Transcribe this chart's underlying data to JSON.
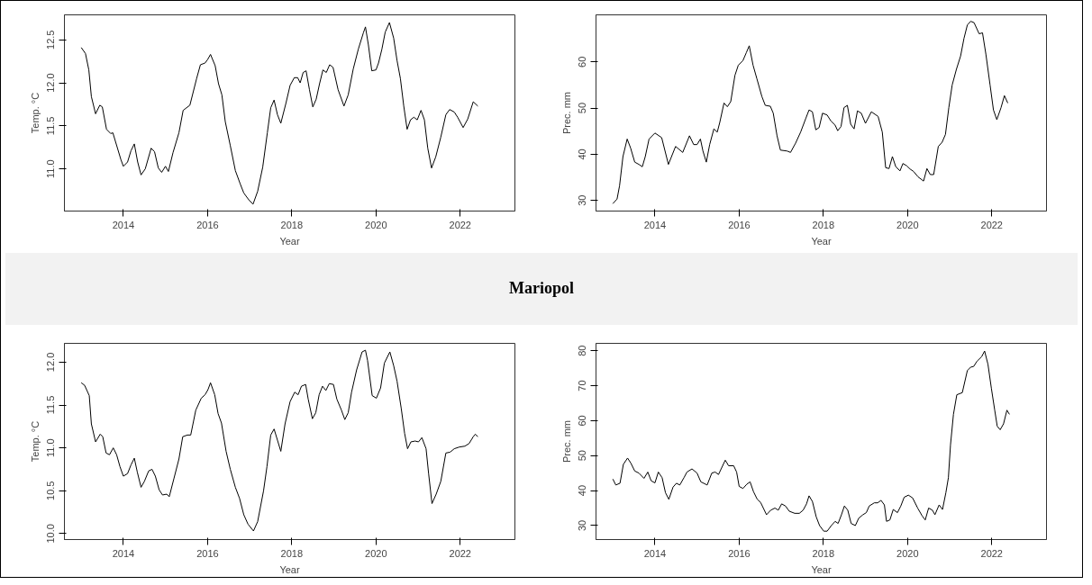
{
  "chart_data": [
    {
      "type": "line",
      "xlabel": "Year",
      "ylabel": "Temp. °C",
      "color": "#000000",
      "xlim": [
        2012.6,
        2023.3
      ],
      "ylim": [
        10.51,
        12.79
      ],
      "xticks": [
        2014,
        2016,
        2018,
        2020,
        2022
      ],
      "yticks": [
        {
          "value": 11,
          "label": "11.0"
        },
        {
          "value": 11.5,
          "label": "11.5"
        },
        {
          "value": 12,
          "label": "12.0"
        },
        {
          "value": 12.5,
          "label": "12.5"
        }
      ],
      "x": [
        2013.0,
        2013.1,
        2013.18,
        2013.24,
        2013.34,
        2013.44,
        2013.5,
        2013.6,
        2013.7,
        2013.75,
        2013.94,
        2014.0,
        2014.1,
        2014.18,
        2014.26,
        2014.34,
        2014.42,
        2014.52,
        2014.66,
        2014.74,
        2014.83,
        2014.91,
        2015.0,
        2015.07,
        2015.18,
        2015.32,
        2015.42,
        2015.58,
        2015.74,
        2015.83,
        2015.94,
        2016.0,
        2016.07,
        2016.18,
        2016.26,
        2016.34,
        2016.42,
        2016.54,
        2016.66,
        2016.78,
        2016.86,
        2016.98,
        2017.08,
        2017.19,
        2017.31,
        2017.42,
        2017.5,
        2017.58,
        2017.66,
        2017.74,
        2017.86,
        2017.96,
        2018.06,
        2018.14,
        2018.2,
        2018.27,
        2018.34,
        2018.42,
        2018.5,
        2018.58,
        2018.66,
        2018.74,
        2018.82,
        2018.9,
        2018.98,
        2019.1,
        2019.24,
        2019.34,
        2019.46,
        2019.58,
        2019.7,
        2019.75,
        2019.82,
        2019.9,
        2020.0,
        2020.06,
        2020.14,
        2020.22,
        2020.32,
        2020.42,
        2020.5,
        2020.58,
        2020.66,
        2020.74,
        2020.82,
        2020.9,
        2020.98,
        2021.07,
        2021.15,
        2021.23,
        2021.32,
        2021.42,
        2021.54,
        2021.66,
        2021.75,
        2021.86,
        2021.94,
        2022.07,
        2022.18,
        2022.31,
        2022.42
      ],
      "values": [
        12.41,
        12.34,
        12.15,
        11.84,
        11.64,
        11.74,
        11.72,
        11.46,
        11.41,
        11.42,
        11.11,
        11.03,
        11.08,
        11.21,
        11.29,
        11.08,
        10.93,
        11.0,
        11.24,
        11.2,
        11.01,
        10.96,
        11.03,
        10.97,
        11.19,
        11.42,
        11.68,
        11.74,
        12.05,
        12.21,
        12.23,
        12.27,
        12.33,
        12.2,
        11.99,
        11.86,
        11.55,
        11.27,
        10.98,
        10.82,
        10.72,
        10.64,
        10.59,
        10.74,
        11.02,
        11.42,
        11.71,
        11.8,
        11.63,
        11.53,
        11.76,
        11.97,
        12.06,
        12.06,
        12.0,
        12.12,
        12.14,
        11.92,
        11.72,
        11.81,
        11.99,
        12.15,
        12.12,
        12.21,
        12.18,
        11.92,
        11.73,
        11.86,
        12.16,
        12.39,
        12.58,
        12.65,
        12.44,
        12.14,
        12.15,
        12.23,
        12.39,
        12.59,
        12.7,
        12.52,
        12.26,
        12.05,
        11.73,
        11.46,
        11.57,
        11.6,
        11.57,
        11.68,
        11.57,
        11.24,
        11.01,
        11.14,
        11.37,
        11.63,
        11.69,
        11.66,
        11.6,
        11.48,
        11.58,
        11.78,
        11.73
      ]
    },
    {
      "type": "line",
      "xlabel": "Year",
      "ylabel": "Prec. mm",
      "color": "#000000",
      "xlim": [
        2012.6,
        2023.3
      ],
      "ylim": [
        27.7,
        70.2
      ],
      "xticks": [
        2014,
        2016,
        2018,
        2020,
        2022
      ],
      "yticks": [
        30,
        40,
        50,
        60
      ],
      "x": [
        2013.0,
        2013.1,
        2013.16,
        2013.24,
        2013.34,
        2013.42,
        2013.52,
        2013.62,
        2013.7,
        2013.77,
        2013.86,
        2014.0,
        2014.16,
        2014.32,
        2014.49,
        2014.66,
        2014.82,
        2014.92,
        2015.0,
        2015.08,
        2015.14,
        2015.22,
        2015.3,
        2015.4,
        2015.48,
        2015.54,
        2015.64,
        2015.72,
        2015.8,
        2015.9,
        2015.98,
        2016.09,
        2016.17,
        2016.24,
        2016.33,
        2016.42,
        2016.54,
        2016.62,
        2016.74,
        2016.81,
        2016.9,
        2016.98,
        2017.14,
        2017.22,
        2017.34,
        2017.46,
        2017.58,
        2017.66,
        2017.74,
        2017.82,
        2017.9,
        2017.98,
        2018.09,
        2018.18,
        2018.28,
        2018.34,
        2018.42,
        2018.49,
        2018.57,
        2018.65,
        2018.73,
        2018.81,
        2018.9,
        2019.0,
        2019.14,
        2019.3,
        2019.4,
        2019.48,
        2019.56,
        2019.64,
        2019.72,
        2019.82,
        2019.89,
        2019.98,
        2020.06,
        2020.14,
        2020.25,
        2020.38,
        2020.46,
        2020.54,
        2020.62,
        2020.73,
        2020.82,
        2020.9,
        2020.98,
        2021.06,
        2021.16,
        2021.26,
        2021.34,
        2021.42,
        2021.5,
        2021.58,
        2021.7,
        2021.78,
        2021.86,
        2021.96,
        2022.04,
        2022.12,
        2022.22,
        2022.3,
        2022.38
      ],
      "values": [
        29.3,
        30.3,
        33.2,
        39.5,
        43.3,
        41.4,
        38.3,
        37.8,
        37.3,
        39.5,
        43.3,
        44.6,
        43.6,
        37.8,
        41.7,
        40.4,
        44.0,
        42.1,
        42.1,
        43.3,
        40.7,
        38.3,
        42.1,
        45.5,
        44.8,
        46.9,
        51.1,
        50.3,
        51.4,
        57.1,
        59.3,
        60.3,
        62.0,
        63.5,
        59.3,
        56.4,
        52.5,
        50.6,
        50.4,
        48.9,
        44.0,
        40.9,
        40.7,
        40.4,
        42.4,
        44.8,
        47.7,
        49.6,
        49.2,
        45.3,
        45.8,
        48.9,
        48.5,
        47.2,
        46.3,
        45.1,
        46.0,
        50.1,
        50.6,
        46.5,
        45.5,
        49.4,
        48.9,
        46.7,
        49.2,
        48.2,
        44.8,
        37.1,
        36.9,
        39.5,
        37.3,
        36.4,
        38.0,
        37.5,
        36.8,
        36.3,
        35.1,
        34.2,
        36.9,
        35.6,
        35.6,
        41.7,
        42.6,
        44.3,
        50.1,
        55.0,
        58.4,
        61.3,
        65.1,
        68.0,
        68.8,
        68.5,
        66.1,
        66.3,
        61.7,
        55.0,
        49.6,
        47.5,
        50.1,
        52.7,
        51.1
      ]
    },
    {
      "type": "line",
      "title": "Mariopol",
      "xlabel": "Year",
      "ylabel": "Temp. °C",
      "color": "#000000",
      "xlim": [
        2012.6,
        2023.3
      ],
      "ylim": [
        9.93,
        12.22
      ],
      "xticks": [
        2014,
        2016,
        2018,
        2020,
        2022
      ],
      "yticks": [
        {
          "value": 10,
          "label": "10.0"
        },
        {
          "value": 10.5,
          "label": "10.5"
        },
        {
          "value": 11,
          "label": "11.0"
        },
        {
          "value": 11.5,
          "label": "11.5"
        },
        {
          "value": 12,
          "label": "12.0"
        }
      ],
      "x": [
        2013.0,
        2013.08,
        2013.19,
        2013.24,
        2013.34,
        2013.45,
        2013.51,
        2013.59,
        2013.67,
        2013.76,
        2013.84,
        2013.92,
        2014.0,
        2014.1,
        2014.18,
        2014.26,
        2014.33,
        2014.42,
        2014.5,
        2014.6,
        2014.68,
        2014.76,
        2014.85,
        2014.93,
        2015.03,
        2015.09,
        2015.2,
        2015.32,
        2015.41,
        2015.52,
        2015.6,
        2015.72,
        2015.85,
        2015.94,
        2016.01,
        2016.07,
        2016.17,
        2016.25,
        2016.33,
        2016.44,
        2016.54,
        2016.66,
        2016.76,
        2016.86,
        2016.96,
        2017.09,
        2017.19,
        2017.33,
        2017.41,
        2017.5,
        2017.58,
        2017.66,
        2017.74,
        2017.84,
        2017.96,
        2018.07,
        2018.15,
        2018.23,
        2018.33,
        2018.39,
        2018.49,
        2018.57,
        2018.65,
        2018.73,
        2018.81,
        2018.89,
        2018.99,
        2019.07,
        2019.18,
        2019.26,
        2019.34,
        2019.42,
        2019.54,
        2019.67,
        2019.75,
        2019.8,
        2019.91,
        2020.01,
        2020.11,
        2020.2,
        2020.33,
        2020.42,
        2020.5,
        2020.6,
        2020.68,
        2020.75,
        2020.83,
        2020.93,
        2021.01,
        2021.09,
        2021.19,
        2021.25,
        2021.33,
        2021.43,
        2021.54,
        2021.66,
        2021.76,
        2021.86,
        2021.98,
        2022.11,
        2022.21,
        2022.31,
        2022.36,
        2022.42
      ],
      "values": [
        11.76,
        11.73,
        11.61,
        11.28,
        11.07,
        11.16,
        11.13,
        10.94,
        10.92,
        11.0,
        10.92,
        10.78,
        10.67,
        10.7,
        10.8,
        10.88,
        10.72,
        10.54,
        10.61,
        10.73,
        10.75,
        10.67,
        10.51,
        10.45,
        10.46,
        10.43,
        10.64,
        10.87,
        11.13,
        11.15,
        11.15,
        11.44,
        11.58,
        11.62,
        11.68,
        11.76,
        11.62,
        11.4,
        11.29,
        10.96,
        10.75,
        10.54,
        10.41,
        10.22,
        10.11,
        10.03,
        10.14,
        10.5,
        10.78,
        11.15,
        11.22,
        11.09,
        10.96,
        11.28,
        11.54,
        11.65,
        11.62,
        11.72,
        11.74,
        11.57,
        11.34,
        11.41,
        11.62,
        11.72,
        11.67,
        11.75,
        11.74,
        11.57,
        11.44,
        11.33,
        11.41,
        11.65,
        11.91,
        12.12,
        12.14,
        12.02,
        11.61,
        11.58,
        11.7,
        11.99,
        12.12,
        11.96,
        11.78,
        11.46,
        11.17,
        10.99,
        11.07,
        11.08,
        11.07,
        11.12,
        10.99,
        10.7,
        10.35,
        10.46,
        10.61,
        10.94,
        10.95,
        10.99,
        11.01,
        11.02,
        11.05,
        11.13,
        11.16,
        11.13
      ]
    },
    {
      "type": "line",
      "xlabel": "Year",
      "ylabel": "Prec. mm",
      "color": "#000000",
      "xlim": [
        2012.6,
        2023.3
      ],
      "ylim": [
        26.0,
        82.1
      ],
      "xticks": [
        2014,
        2016,
        2018,
        2020,
        2022
      ],
      "yticks": [
        30,
        40,
        50,
        60,
        70,
        80
      ],
      "x": [
        2013.0,
        2013.07,
        2013.17,
        2013.25,
        2013.35,
        2013.43,
        2013.52,
        2013.62,
        2013.74,
        2013.83,
        2013.91,
        2014.0,
        2014.08,
        2014.17,
        2014.25,
        2014.33,
        2014.43,
        2014.51,
        2014.59,
        2014.69,
        2014.76,
        2014.88,
        2015.0,
        2015.09,
        2015.24,
        2015.35,
        2015.43,
        2015.51,
        2015.67,
        2015.75,
        2015.87,
        2015.94,
        2016.0,
        2016.09,
        2016.18,
        2016.26,
        2016.34,
        2016.43,
        2016.51,
        2016.65,
        2016.75,
        2016.85,
        2016.93,
        2017.01,
        2017.1,
        2017.19,
        2017.32,
        2017.43,
        2017.52,
        2017.6,
        2017.66,
        2017.74,
        2017.83,
        2017.91,
        2018.01,
        2018.09,
        2018.19,
        2018.28,
        2018.35,
        2018.43,
        2018.5,
        2018.58,
        2018.66,
        2018.76,
        2018.84,
        2018.94,
        2019.02,
        2019.09,
        2019.21,
        2019.29,
        2019.37,
        2019.45,
        2019.5,
        2019.58,
        2019.66,
        2019.76,
        2019.84,
        2019.92,
        2020.02,
        2020.12,
        2020.24,
        2020.35,
        2020.42,
        2020.5,
        2020.59,
        2020.65,
        2020.75,
        2020.83,
        2020.91,
        2020.97,
        2021.02,
        2021.09,
        2021.17,
        2021.3,
        2021.42,
        2021.5,
        2021.57,
        2021.65,
        2021.76,
        2021.83,
        2021.91,
        2021.99,
        2022.07,
        2022.13,
        2022.2,
        2022.28,
        2022.36,
        2022.42
      ],
      "values": [
        43.3,
        41.6,
        42.1,
        47.5,
        49.3,
        47.8,
        45.6,
        45.0,
        43.5,
        45.3,
        42.8,
        42.2,
        45.3,
        43.7,
        39.4,
        37.5,
        41.0,
        42.1,
        41.6,
        43.7,
        45.3,
        46.2,
        45.0,
        42.5,
        41.6,
        45.0,
        45.3,
        44.6,
        48.7,
        47.1,
        47.1,
        45.3,
        41.2,
        40.6,
        41.8,
        42.5,
        39.7,
        37.5,
        36.6,
        33.1,
        34.4,
        35.0,
        34.4,
        36.2,
        35.6,
        34.1,
        33.5,
        33.5,
        34.4,
        36.2,
        38.5,
        36.9,
        32.5,
        30.0,
        28.4,
        28.4,
        30.0,
        31.2,
        30.6,
        33.1,
        35.6,
        34.4,
        30.6,
        30.0,
        32.1,
        33.1,
        33.7,
        35.6,
        36.5,
        36.5,
        37.2,
        35.9,
        31.2,
        31.6,
        34.6,
        33.7,
        35.6,
        38.1,
        38.7,
        37.9,
        35.0,
        32.7,
        31.6,
        35.0,
        34.4,
        33.1,
        35.9,
        34.6,
        39.4,
        43.7,
        53.1,
        61.8,
        67.4,
        68.0,
        74.3,
        75.3,
        75.5,
        77.0,
        78.3,
        79.9,
        76.1,
        69.3,
        63.0,
        58.4,
        57.4,
        59.1,
        63.0,
        61.8
      ]
    }
  ]
}
